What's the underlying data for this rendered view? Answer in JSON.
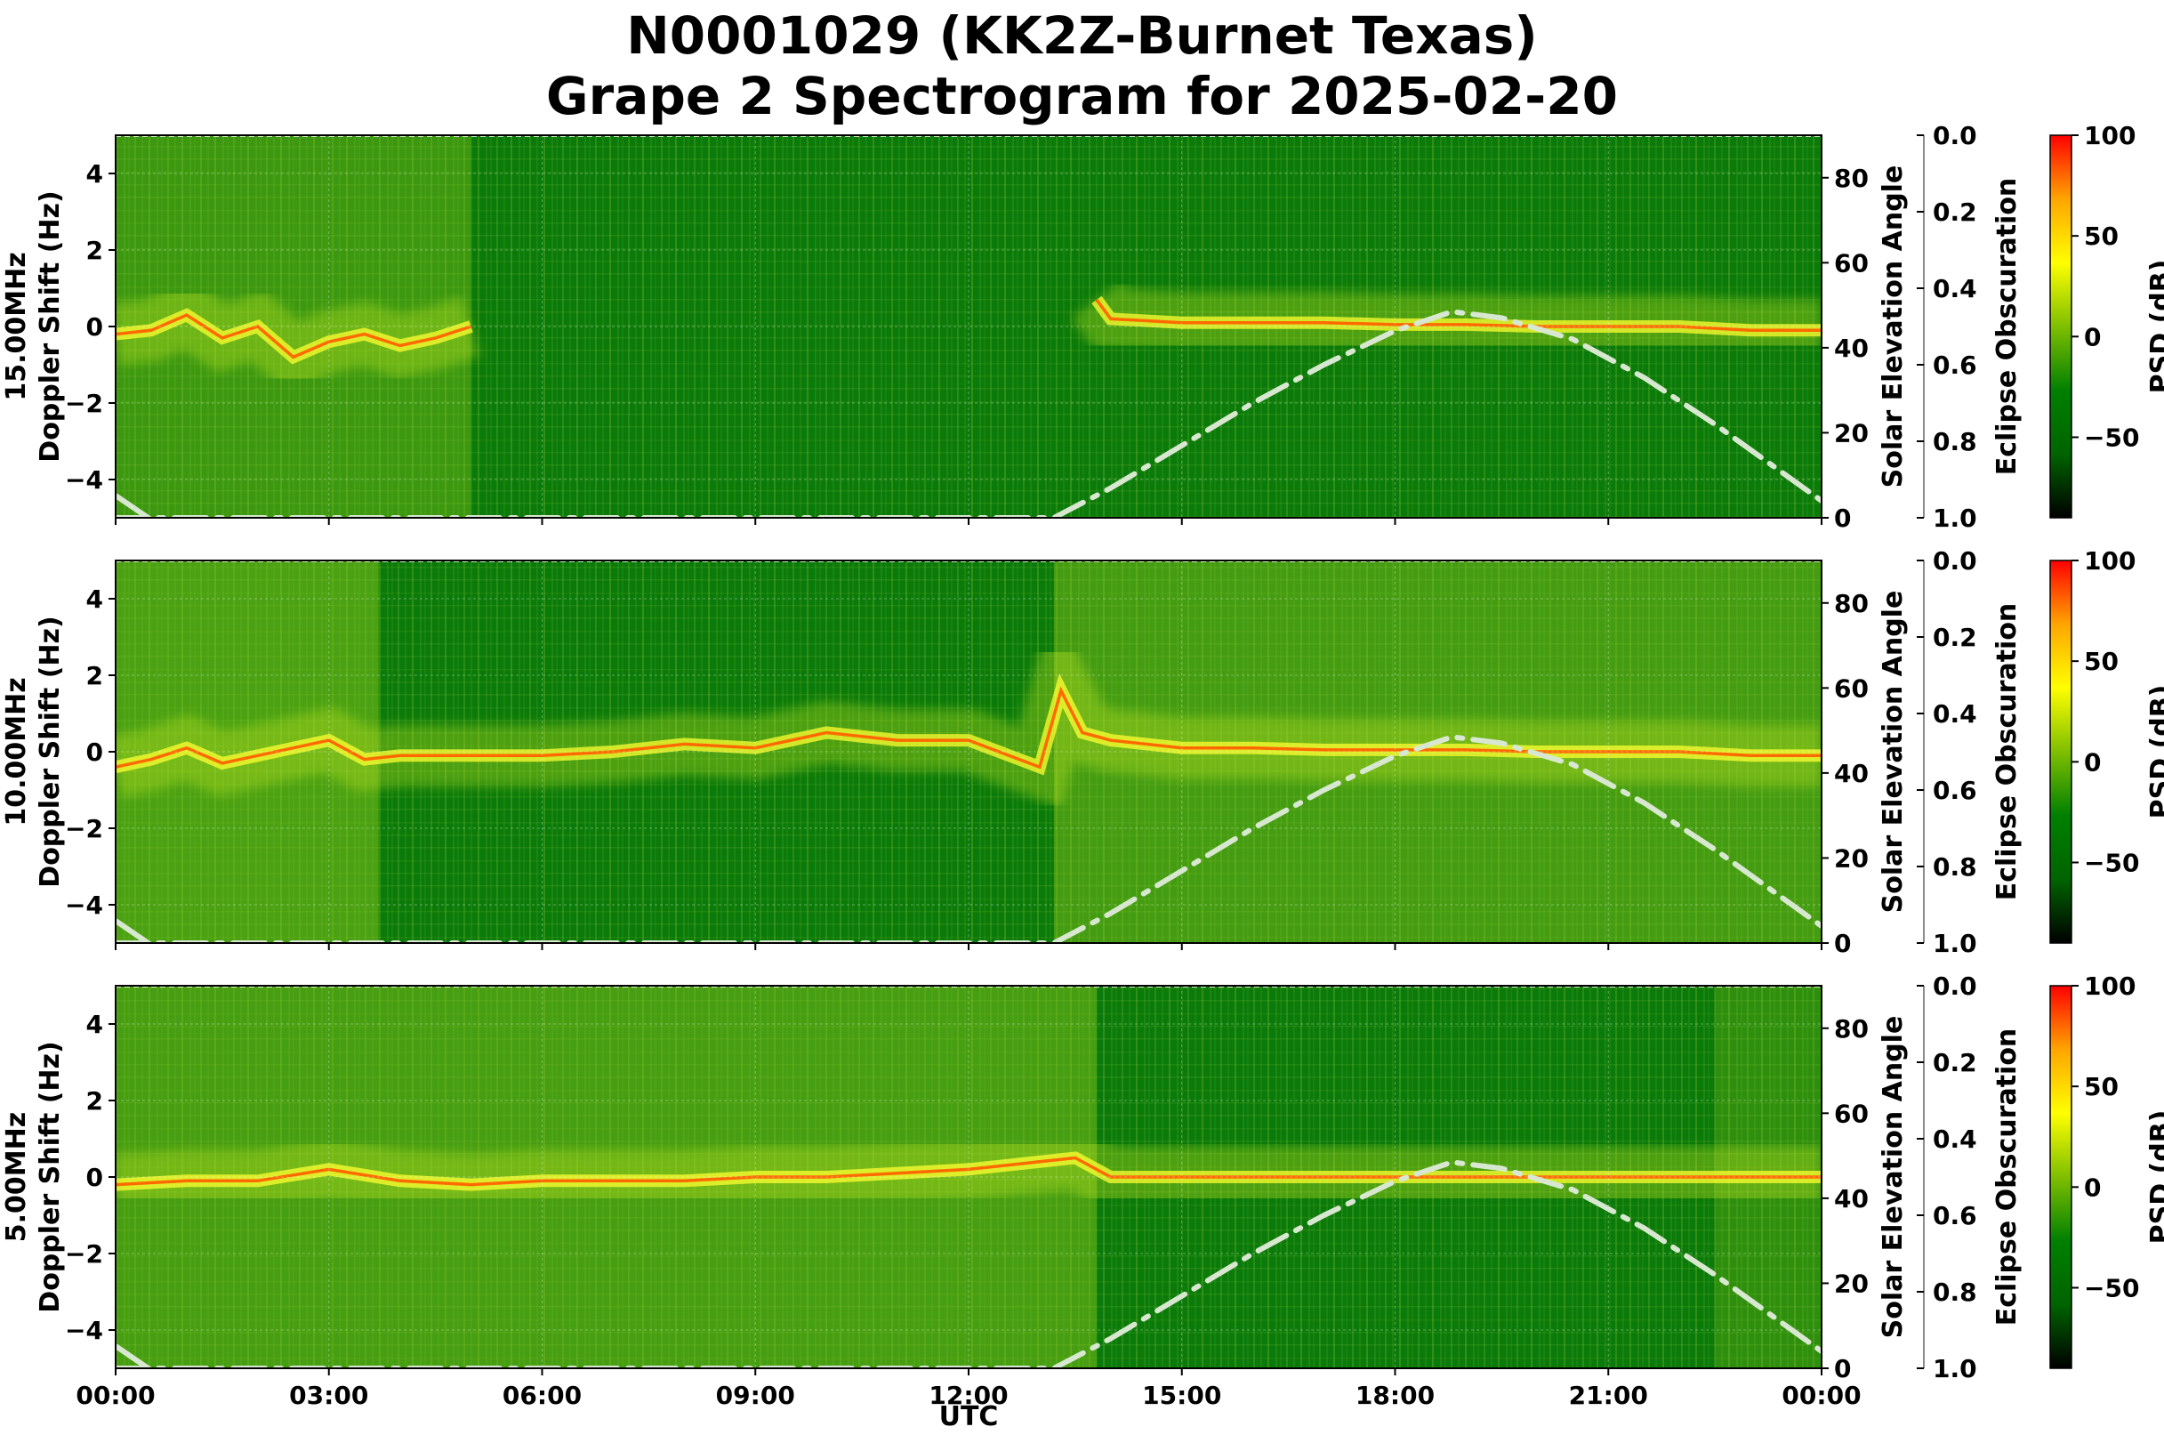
{
  "chart_data": {
    "type": "heatmap",
    "title_line1": "N0001029 (KK2Z-Burnet Texas)",
    "title_line2": "Grape 2 Spectrogram for 2025-02-20",
    "xlabel": "UTC",
    "x_ticks": [
      "00:00",
      "03:00",
      "06:00",
      "09:00",
      "12:00",
      "15:00",
      "18:00",
      "21:00",
      "00:00"
    ],
    "x_range_hours": [
      0,
      24
    ],
    "doppler_label": "Doppler Shift (Hz)",
    "doppler_ticks": [
      4,
      2,
      0,
      -2,
      -4
    ],
    "doppler_range": [
      -5,
      5
    ],
    "solar_label": "Solar Elevation Angle",
    "solar_ticks": [
      80,
      60,
      40,
      20,
      0
    ],
    "solar_range": [
      0,
      90
    ],
    "eclipse_label": "Eclipse Obscuration",
    "eclipse_ticks": [
      "0.0",
      "0.2",
      "0.4",
      "0.6",
      "0.8",
      "1.0"
    ],
    "colorbar_label": "PSD (dB)",
    "colorbar_ticks": [
      100,
      50,
      0,
      -50
    ],
    "colorbar_range": [
      -90,
      100
    ],
    "colormap": [
      "#000000",
      "#006400",
      "#008000",
      "#7fbf00",
      "#ffff00",
      "#ffa500",
      "#ff0000"
    ],
    "solar_elevation_curve": {
      "style": "dash-dot",
      "color": "#d8e8d0",
      "peak_hour": 18.8,
      "peak_deg": 48.5,
      "x": [
        0,
        13.2,
        14,
        15,
        16,
        17,
        18,
        18.8,
        19.5,
        20.5,
        21.5,
        22.5,
        23.5,
        24
      ],
      "y": [
        0,
        0,
        7,
        17,
        27,
        36,
        44,
        48.5,
        47,
        42,
        33,
        22,
        10,
        4
      ]
    },
    "panels": [
      {
        "label": "15.00MHz",
        "carrier": {
          "x": [
            0,
            0.5,
            1,
            1.5,
            2,
            2.5,
            3,
            3.5,
            4,
            4.5,
            5,
            13.8,
            14,
            15,
            16,
            17,
            18,
            19,
            20,
            21,
            22,
            23,
            24
          ],
          "y": [
            -0.2,
            -0.1,
            0.3,
            -0.3,
            0.0,
            -0.8,
            -0.4,
            -0.2,
            -0.5,
            -0.3,
            0.0,
            0.7,
            0.2,
            0.1,
            0.1,
            0.1,
            0.05,
            0.05,
            0.0,
            0.0,
            0.0,
            -0.1,
            -0.1
          ],
          "gap": [
            5,
            13.8
          ]
        }
      },
      {
        "label": "10.00MHz",
        "carrier": {
          "x": [
            0,
            0.5,
            1,
            1.5,
            2,
            2.5,
            3,
            3.5,
            4,
            5,
            6,
            7,
            8,
            9,
            10,
            11,
            12,
            13,
            13.3,
            13.6,
            14,
            15,
            16,
            17,
            18,
            19,
            20,
            21,
            22,
            23,
            24
          ],
          "y": [
            -0.4,
            -0.2,
            0.1,
            -0.3,
            -0.1,
            0.1,
            0.3,
            -0.2,
            -0.1,
            -0.1,
            -0.1,
            0.0,
            0.2,
            0.1,
            0.5,
            0.3,
            0.3,
            -0.4,
            1.6,
            0.5,
            0.3,
            0.1,
            0.1,
            0.05,
            0.05,
            0.05,
            0.0,
            0.0,
            0.0,
            -0.1,
            -0.1
          ],
          "gap": null
        }
      },
      {
        "label": "5.00MHz",
        "carrier": {
          "x": [
            0,
            1,
            2,
            3,
            4,
            5,
            6,
            7,
            8,
            9,
            10,
            11,
            12,
            13,
            13.5,
            14,
            15,
            16,
            17,
            18,
            19,
            20,
            21,
            22,
            23,
            24
          ],
          "y": [
            -0.2,
            -0.1,
            -0.1,
            0.2,
            -0.1,
            -0.2,
            -0.1,
            -0.1,
            -0.1,
            0.0,
            0.0,
            0.1,
            0.2,
            0.4,
            0.5,
            0.0,
            0.0,
            0.0,
            0.0,
            0.0,
            0.0,
            0.0,
            0.0,
            0.0,
            0.0,
            0.0
          ],
          "gap": null
        }
      }
    ]
  }
}
